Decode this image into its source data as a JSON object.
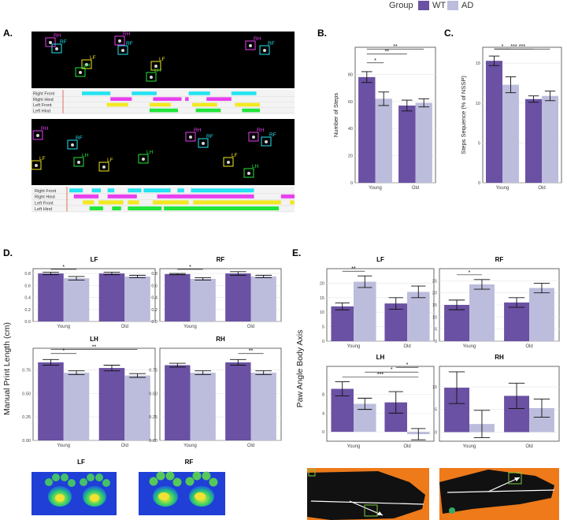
{
  "legend": {
    "title": "Group",
    "items": [
      {
        "label": "WT",
        "color": "#6a51a3"
      },
      {
        "label": "AD",
        "color": "#bcbddc"
      }
    ]
  },
  "panels": {
    "A": "A.",
    "B": "B.",
    "C": "C.",
    "D": "D.",
    "E": "E."
  },
  "gait": {
    "rows_top": [
      "Right Front",
      "Right Hind",
      "Left Front",
      "Left Hind"
    ],
    "rows_bottom": [
      "Right Front",
      "Right Hind",
      "Left Front",
      "Left Hind"
    ],
    "colors": [
      "#22e3f2",
      "#e83ff0",
      "#f2e81f",
      "#22e63a"
    ],
    "paw_labels_top": [
      "RH",
      "RF",
      "LF",
      "LH",
      "RH",
      "RF",
      "LF",
      "LH",
      "RH",
      "RF"
    ],
    "paw_labels_bottom": [
      "RH",
      "RF",
      "LF",
      "LH",
      "LF",
      "RH",
      "RF",
      "LH",
      "LF",
      "RH",
      "RF",
      "LH"
    ],
    "bars_top": [
      [
        [
          0.0,
          0.16
        ],
        [
          0.28,
          0.42
        ],
        [
          0.6,
          0.72
        ],
        [
          0.84,
          0.98
        ]
      ],
      [
        [
          0.16,
          0.28
        ],
        [
          0.4,
          0.56
        ],
        [
          0.58,
          0.6
        ],
        [
          0.7,
          0.84
        ]
      ],
      [
        [
          0.14,
          0.26
        ],
        [
          0.38,
          0.5
        ],
        [
          0.62,
          0.76
        ],
        [
          0.86,
          1.0
        ]
      ],
      [
        [
          0.38,
          0.54
        ],
        [
          0.64,
          0.78
        ],
        [
          0.9,
          1.0
        ]
      ]
    ],
    "bars_bottom": [
      [
        [
          0.0,
          0.06
        ],
        [
          0.1,
          0.14
        ],
        [
          0.17,
          0.2
        ],
        [
          0.26,
          0.32
        ],
        [
          0.33,
          0.45
        ],
        [
          0.48,
          0.51
        ],
        [
          0.54,
          0.82
        ]
      ],
      [
        [
          0.02,
          0.13
        ],
        [
          0.17,
          0.3
        ],
        [
          0.39,
          0.82
        ],
        [
          0.94,
          1.0
        ]
      ],
      [
        [
          0.06,
          0.11
        ],
        [
          0.13,
          0.24
        ],
        [
          0.26,
          0.31
        ],
        [
          0.37,
          0.53
        ],
        [
          0.55,
          0.94
        ],
        [
          0.98,
          1.0
        ]
      ],
      [
        [
          0.09,
          0.15
        ],
        [
          0.19,
          0.23
        ],
        [
          0.26,
          0.41
        ],
        [
          0.42,
          0.93
        ]
      ]
    ]
  },
  "chart_data": [
    {
      "id": "B",
      "type": "bar",
      "ylabel": "Number of Steps",
      "categories": [
        "Young",
        "Old"
      ],
      "ylim": [
        0,
        100
      ],
      "yticks": [
        0,
        20,
        40,
        60,
        80
      ],
      "series": [
        {
          "name": "WT",
          "values": [
            78,
            57
          ],
          "errors": [
            4,
            4
          ]
        },
        {
          "name": "AD",
          "values": [
            62,
            59
          ],
          "errors": [
            5,
            3
          ]
        }
      ],
      "significance": [
        {
          "from": [
            0,
            0
          ],
          "to": [
            0,
            1
          ],
          "label": "*"
        },
        {
          "from": [
            0,
            0
          ],
          "to": [
            1,
            0
          ],
          "label": "**"
        },
        {
          "from": [
            0,
            0
          ],
          "to": [
            1,
            1
          ],
          "label": "**"
        }
      ]
    },
    {
      "id": "C",
      "type": "bar",
      "ylabel": "Steps Sequence (% of NSSP)",
      "categories": [
        "Young",
        "Old"
      ],
      "ylim": [
        0,
        17
      ],
      "yticks": [
        0,
        5,
        10,
        15
      ],
      "series": [
        {
          "name": "WT",
          "values": [
            15.3,
            10.5
          ],
          "errors": [
            0.6,
            0.4
          ]
        },
        {
          "name": "AD",
          "values": [
            12.3,
            10.9
          ],
          "errors": [
            1.0,
            0.6
          ]
        }
      ],
      "significance": [
        {
          "from": [
            0,
            0
          ],
          "to": [
            0,
            1
          ],
          "label": "*"
        },
        {
          "from": [
            0,
            0
          ],
          "to": [
            1,
            0
          ],
          "label": "***"
        },
        {
          "from": [
            0,
            0
          ],
          "to": [
            1,
            1
          ],
          "label": "***"
        }
      ]
    },
    {
      "id": "D-LF",
      "type": "bar",
      "title": "LF",
      "categories": [
        "Young",
        "Old"
      ],
      "ylim": [
        0,
        0.88
      ],
      "yticks": [
        0.0,
        0.2,
        0.4,
        0.6,
        0.8
      ],
      "ytick_labels": [
        "0.0",
        "0.2",
        "0.4",
        "0.6",
        "0.8"
      ],
      "series": [
        {
          "name": "WT",
          "values": [
            0.8,
            0.8
          ],
          "errors": [
            0.02,
            0.02
          ]
        },
        {
          "name": "AD",
          "values": [
            0.72,
            0.75
          ],
          "errors": [
            0.03,
            0.02
          ]
        }
      ],
      "significance": [
        {
          "from": [
            0,
            0
          ],
          "to": [
            0,
            1
          ],
          "label": "*"
        }
      ]
    },
    {
      "id": "D-RF",
      "type": "bar",
      "title": "RF",
      "categories": [
        "Young",
        "Old"
      ],
      "ylim": [
        0,
        0.88
      ],
      "yticks": [
        0.0,
        0.2,
        0.4,
        0.6,
        0.8
      ],
      "ytick_labels": [
        "0.0",
        "0.2",
        "0.4",
        "0.6",
        "0.8"
      ],
      "series": [
        {
          "name": "WT",
          "values": [
            0.79,
            0.8
          ],
          "errors": [
            0.01,
            0.03
          ]
        },
        {
          "name": "AD",
          "values": [
            0.71,
            0.75
          ],
          "errors": [
            0.02,
            0.02
          ]
        }
      ],
      "significance": [
        {
          "from": [
            0,
            0
          ],
          "to": [
            0,
            1
          ],
          "label": "*"
        }
      ]
    },
    {
      "id": "D-LH",
      "type": "bar",
      "title": "LH",
      "categories": [
        "Young",
        "Old"
      ],
      "ylim": [
        0,
        0.98
      ],
      "yticks": [
        0.0,
        0.25,
        0.5,
        0.75
      ],
      "ytick_labels": [
        "0.00",
        "0.25",
        "0.50",
        "0.75"
      ],
      "series": [
        {
          "name": "WT",
          "values": [
            0.83,
            0.77
          ],
          "errors": [
            0.03,
            0.03
          ]
        },
        {
          "name": "AD",
          "values": [
            0.72,
            0.69
          ],
          "errors": [
            0.02,
            0.02
          ]
        }
      ],
      "significance": [
        {
          "from": [
            0,
            0
          ],
          "to": [
            0,
            1
          ],
          "label": "*"
        },
        {
          "from": [
            0,
            0
          ],
          "to": [
            1,
            1
          ],
          "label": "**"
        }
      ]
    },
    {
      "id": "D-RH",
      "type": "bar",
      "title": "RH",
      "categories": [
        "Young",
        "Old"
      ],
      "ylim": [
        0,
        0.98
      ],
      "yticks": [
        0.0,
        0.25,
        0.5,
        0.75
      ],
      "ytick_labels": [
        "0.00",
        "0.25",
        "0.50",
        "0.75"
      ],
      "series": [
        {
          "name": "WT",
          "values": [
            0.8,
            0.83
          ],
          "errors": [
            0.02,
            0.03
          ]
        },
        {
          "name": "AD",
          "values": [
            0.72,
            0.72
          ],
          "errors": [
            0.02,
            0.02
          ]
        }
      ],
      "significance": [
        {
          "from": [
            1,
            0
          ],
          "to": [
            1,
            1
          ],
          "label": "**"
        }
      ]
    },
    {
      "id": "E-LF",
      "type": "bar",
      "title": "LF",
      "categories": [
        "Young",
        "Old"
      ],
      "ylim": [
        0,
        25
      ],
      "yticks": [
        0,
        5,
        10,
        15,
        20
      ],
      "series": [
        {
          "name": "WT",
          "values": [
            12,
            13
          ],
          "errors": [
            1.2,
            2
          ]
        },
        {
          "name": "AD",
          "values": [
            20.5,
            17
          ],
          "errors": [
            2,
            2
          ]
        }
      ],
      "significance": [
        {
          "from": [
            0,
            0
          ],
          "to": [
            0,
            1
          ],
          "label": "**"
        }
      ]
    },
    {
      "id": "E-RF",
      "type": "bar",
      "title": "RF",
      "categories": [
        "Young",
        "Old"
      ],
      "ylim": [
        0,
        30
      ],
      "yticks": [
        0,
        5,
        10,
        15,
        20,
        25
      ],
      "series": [
        {
          "name": "WT",
          "values": [
            15,
            16
          ],
          "errors": [
            2,
            2
          ]
        },
        {
          "name": "AD",
          "values": [
            23.5,
            22
          ],
          "errors": [
            2,
            2
          ]
        }
      ],
      "significance": [
        {
          "from": [
            0,
            0
          ],
          "to": [
            0,
            1
          ],
          "label": "*"
        }
      ]
    },
    {
      "id": "E-LH",
      "type": "bar",
      "title": "LH",
      "categories": [
        "Young",
        "Old"
      ],
      "ylim": [
        -2,
        14
      ],
      "yticks": [
        0,
        4,
        8
      ],
      "series": [
        {
          "name": "WT",
          "values": [
            9.2,
            6.3
          ],
          "errors": [
            1.5,
            2.3
          ]
        },
        {
          "name": "AD",
          "values": [
            6.0,
            -0.5
          ],
          "errors": [
            1.2,
            1.2
          ]
        }
      ],
      "significance": [
        {
          "from": [
            0,
            0
          ],
          "to": [
            1,
            1
          ],
          "label": "***"
        },
        {
          "from": [
            0,
            1
          ],
          "to": [
            1,
            1
          ],
          "label": "*"
        },
        {
          "from": [
            1,
            0
          ],
          "to": [
            1,
            1
          ],
          "label": "*"
        }
      ]
    },
    {
      "id": "E-RH",
      "type": "bar",
      "title": "RH",
      "categories": [
        "Young",
        "Old"
      ],
      "ylim": [
        -2,
        14.5
      ],
      "yticks": [
        0,
        5,
        10
      ],
      "series": [
        {
          "name": "WT",
          "values": [
            9.8,
            8.0
          ],
          "errors": [
            3.5,
            2.8
          ]
        },
        {
          "name": "AD",
          "values": [
            1.8,
            5.3
          ],
          "errors": [
            3,
            2
          ]
        }
      ],
      "significance": []
    }
  ],
  "axis_labels": {
    "D": "Manual Print Length (cm)",
    "E": "Paw Angle Body Axis"
  },
  "prints": {
    "left": "LF",
    "right": "RF"
  }
}
